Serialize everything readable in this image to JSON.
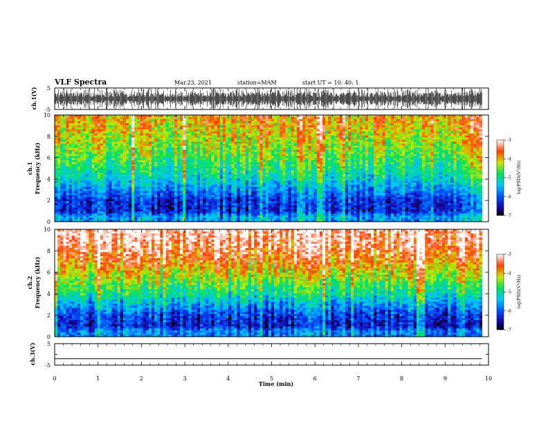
{
  "header": {
    "title": "VLF Spectra",
    "date": "Mar.23, 2021",
    "station": "station=MAM",
    "start": "start  UT  =   10: 40: 1"
  },
  "chart_data": [
    {
      "type": "line",
      "panel": "ch1-waveform",
      "ylabel": "ch.1(V)",
      "ylim": [
        -5,
        5
      ],
      "yticks": [
        "5",
        "-5"
      ],
      "description_values": {
        "trace": "dense impulsive waveform spanning full range",
        "x_end_min": 9.85
      }
    },
    {
      "type": "heatmap",
      "panel": "ch1-spectrogram",
      "ylabel_line1": "ch.1",
      "ylabel_line2": "Frequency (kHz)",
      "ylim": [
        0,
        10
      ],
      "yticks": [
        "0",
        "2",
        "4",
        "6",
        "8",
        "10"
      ],
      "x_end_min": 9.85,
      "approx_logPSD_by_freq_kHz": [
        [
          0.5,
          -5.6
        ],
        [
          1,
          -6.3
        ],
        [
          2,
          -6.2
        ],
        [
          3,
          -5.7
        ],
        [
          4,
          -5.2
        ],
        [
          5,
          -4.9
        ],
        [
          6,
          -4.6
        ],
        [
          7,
          -4.4
        ],
        [
          8,
          -4.2
        ],
        [
          9,
          -4.0
        ],
        [
          10,
          -3.9
        ]
      ],
      "colorbar": {
        "label": "log(PSD)(V²/Hz)",
        "range": [
          -7,
          -3
        ],
        "ticks": [
          "-3",
          "-4",
          "-5",
          "-6",
          "-7"
        ]
      }
    },
    {
      "type": "heatmap",
      "panel": "ch2-spectrogram",
      "ylabel_line1": "ch.2",
      "ylabel_line2": "Frequency (kHz)",
      "ylim": [
        0,
        10
      ],
      "yticks": [
        "0",
        "2",
        "4",
        "6",
        "8",
        "10"
      ],
      "x_end_min": 9.85,
      "approx_logPSD_by_freq_kHz": [
        [
          0.5,
          -5.8
        ],
        [
          1,
          -6.4
        ],
        [
          2,
          -6.2
        ],
        [
          3,
          -5.6
        ],
        [
          4,
          -5.0
        ],
        [
          5,
          -4.6
        ],
        [
          6,
          -4.2
        ],
        [
          7,
          -3.8
        ],
        [
          8,
          -3.5
        ],
        [
          9,
          -3.3
        ],
        [
          10,
          -3.2
        ]
      ],
      "colorbar": {
        "label": "log(PSD)(V²/Hz)",
        "range": [
          -7,
          -3
        ],
        "ticks": [
          "-3",
          "-4",
          "-5",
          "-6",
          "-7"
        ]
      }
    },
    {
      "type": "line",
      "panel": "ch3-waveform",
      "ylabel": "ch.3(V)",
      "ylim": [
        -5,
        5
      ],
      "yticks": [
        "5",
        "0",
        "-5"
      ],
      "series": [
        {
          "x": [
            0,
            9.85
          ],
          "y": [
            -2,
            -2
          ]
        }
      ]
    }
  ],
  "xaxis": {
    "label": "Time  (min)",
    "range": [
      0,
      10
    ],
    "ticks": [
      "0",
      "1",
      "2",
      "3",
      "4",
      "5",
      "6",
      "7",
      "8",
      "9",
      "10"
    ]
  }
}
